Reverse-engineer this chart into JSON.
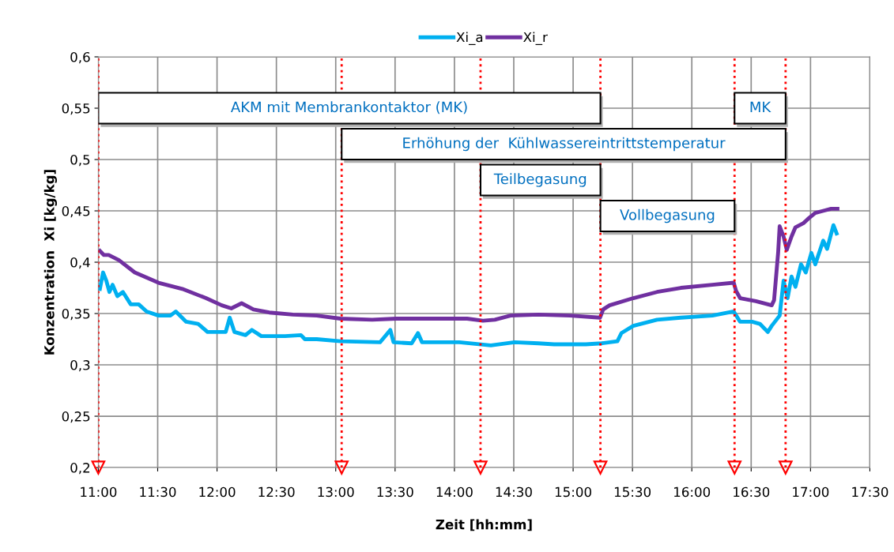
{
  "chart_data": {
    "type": "line",
    "xlabel": "Zeit [hh:mm]",
    "ylabel": "Konzentration  Xi [kg/kg]",
    "xlim": [
      11,
      17.5
    ],
    "xticks": [
      {
        "value": 11,
        "label": "11:00"
      },
      {
        "value": 11.5,
        "label": "11:30"
      },
      {
        "value": 12,
        "label": "12:00"
      },
      {
        "value": 12.5,
        "label": "12:30"
      },
      {
        "value": 13,
        "label": "13:00"
      },
      {
        "value": 13.5,
        "label": "13:30"
      },
      {
        "value": 14,
        "label": "14:00"
      },
      {
        "value": 14.5,
        "label": "14:30"
      },
      {
        "value": 15,
        "label": "15:00"
      },
      {
        "value": 15.5,
        "label": "15:30"
      },
      {
        "value": 16,
        "label": "16:00"
      },
      {
        "value": 16.5,
        "label": "16:30"
      },
      {
        "value": 17,
        "label": "17:00"
      },
      {
        "value": 17.5,
        "label": "17:30"
      }
    ],
    "ylim": [
      0.2,
      0.6
    ],
    "yticks": [
      {
        "value": 0.2,
        "label": "0,2"
      },
      {
        "value": 0.25,
        "label": "0,25"
      },
      {
        "value": 0.3,
        "label": "0,3"
      },
      {
        "value": 0.35,
        "label": "0,35"
      },
      {
        "value": 0.4,
        "label": "0,4"
      },
      {
        "value": 0.45,
        "label": "0,45"
      },
      {
        "value": 0.5,
        "label": "0,5"
      },
      {
        "value": 0.55,
        "label": "0,55"
      },
      {
        "value": 0.6,
        "label": "0,6"
      }
    ],
    "grid": true,
    "legend": "top",
    "marker": "none",
    "line_style": "solid",
    "series": [
      {
        "name": "Xi_a",
        "color": "#00b0f0",
        "x": [
          11.013,
          11.04,
          11.067,
          11.093,
          11.12,
          11.16,
          11.207,
          11.273,
          11.34,
          11.407,
          11.507,
          11.607,
          11.653,
          11.74,
          11.84,
          11.92,
          12.007,
          12.073,
          12.107,
          12.147,
          12.24,
          12.293,
          12.373,
          12.573,
          12.707,
          12.74,
          12.84,
          13.04,
          13.373,
          13.46,
          13.487,
          13.64,
          13.693,
          13.727,
          14.04,
          14.307,
          14.507,
          14.707,
          14.84,
          15.107,
          15.24,
          15.373,
          15.407,
          15.507,
          15.707,
          15.907,
          16.173,
          16.353,
          16.407,
          16.507,
          16.573,
          16.64,
          16.673,
          16.74,
          16.773,
          16.807,
          16.84,
          16.873,
          16.92,
          16.96,
          17.007,
          17.04,
          17.107,
          17.14,
          17.193,
          17.22
        ],
        "values": [
          0.374,
          0.39,
          0.382,
          0.371,
          0.378,
          0.367,
          0.371,
          0.359,
          0.359,
          0.352,
          0.348,
          0.348,
          0.352,
          0.342,
          0.34,
          0.332,
          0.332,
          0.332,
          0.346,
          0.332,
          0.329,
          0.334,
          0.328,
          0.328,
          0.329,
          0.325,
          0.325,
          0.323,
          0.322,
          0.334,
          0.322,
          0.321,
          0.331,
          0.322,
          0.322,
          0.319,
          0.322,
          0.321,
          0.32,
          0.32,
          0.321,
          0.323,
          0.331,
          0.338,
          0.344,
          0.346,
          0.348,
          0.352,
          0.342,
          0.342,
          0.34,
          0.332,
          0.338,
          0.348,
          0.382,
          0.365,
          0.386,
          0.376,
          0.398,
          0.39,
          0.409,
          0.398,
          0.421,
          0.413,
          0.436,
          0.428
        ]
      },
      {
        "name": "Xi_r",
        "color": "#7030a0",
        "x": [
          11.013,
          11.047,
          11.087,
          11.173,
          11.307,
          11.507,
          11.707,
          11.907,
          12.04,
          12.12,
          12.207,
          12.307,
          12.44,
          12.64,
          12.84,
          13.04,
          13.307,
          13.507,
          13.707,
          13.907,
          14.107,
          14.24,
          14.34,
          14.473,
          14.707,
          14.973,
          15.227,
          15.253,
          15.307,
          15.507,
          15.707,
          15.907,
          16.173,
          16.353,
          16.373,
          16.407,
          16.54,
          16.673,
          16.693,
          16.727,
          16.74,
          16.773,
          16.8,
          16.84,
          16.873,
          16.94,
          16.987,
          17.04,
          17.107,
          17.173,
          17.227
        ],
        "values": [
          0.411,
          0.407,
          0.407,
          0.402,
          0.39,
          0.38,
          0.374,
          0.365,
          0.358,
          0.355,
          0.36,
          0.354,
          0.351,
          0.349,
          0.348,
          0.345,
          0.344,
          0.345,
          0.345,
          0.345,
          0.345,
          0.343,
          0.344,
          0.348,
          0.349,
          0.348,
          0.346,
          0.354,
          0.358,
          0.365,
          0.371,
          0.375,
          0.378,
          0.38,
          0.372,
          0.365,
          0.362,
          0.358,
          0.363,
          0.409,
          0.435,
          0.425,
          0.412,
          0.425,
          0.434,
          0.438,
          0.443,
          0.448,
          0.45,
          0.452,
          0.452
        ]
      }
    ],
    "ref_lines": [
      {
        "axis": "x",
        "value": 11.0,
        "color": "#ff0000",
        "line_style": "dotted"
      },
      {
        "axis": "x",
        "value": 13.05,
        "color": "#ff0000",
        "line_style": "dotted"
      },
      {
        "axis": "x",
        "value": 14.22,
        "color": "#ff0000",
        "line_style": "dotted"
      },
      {
        "axis": "x",
        "value": 15.23,
        "color": "#ff0000",
        "line_style": "dotted"
      },
      {
        "axis": "x",
        "value": 16.36,
        "color": "#ff0000",
        "line_style": "dotted"
      },
      {
        "axis": "x",
        "value": 16.79,
        "color": "#ff0000",
        "line_style": "dotted"
      }
    ],
    "bands": [
      {
        "axis": "x",
        "from": 11.0,
        "to": 15.23,
        "label": "AKM mit Membrankontaktor (MK)",
        "color": "#ffffff"
      },
      {
        "axis": "x",
        "from": 13.05,
        "to": 16.79,
        "label": "Erhöhung der  Kühlwassereintrittstemperatur",
        "color": "#ffffff"
      },
      {
        "axis": "x",
        "from": 14.22,
        "to": 15.23,
        "label": "Teilbegasung",
        "color": "#ffffff"
      },
      {
        "axis": "x",
        "from": 15.23,
        "to": 16.36,
        "label": "Vollbegasung",
        "color": "#ffffff"
      },
      {
        "axis": "x",
        "from": 16.36,
        "to": 16.79,
        "label": "MK",
        "color": "#ffffff"
      }
    ]
  }
}
